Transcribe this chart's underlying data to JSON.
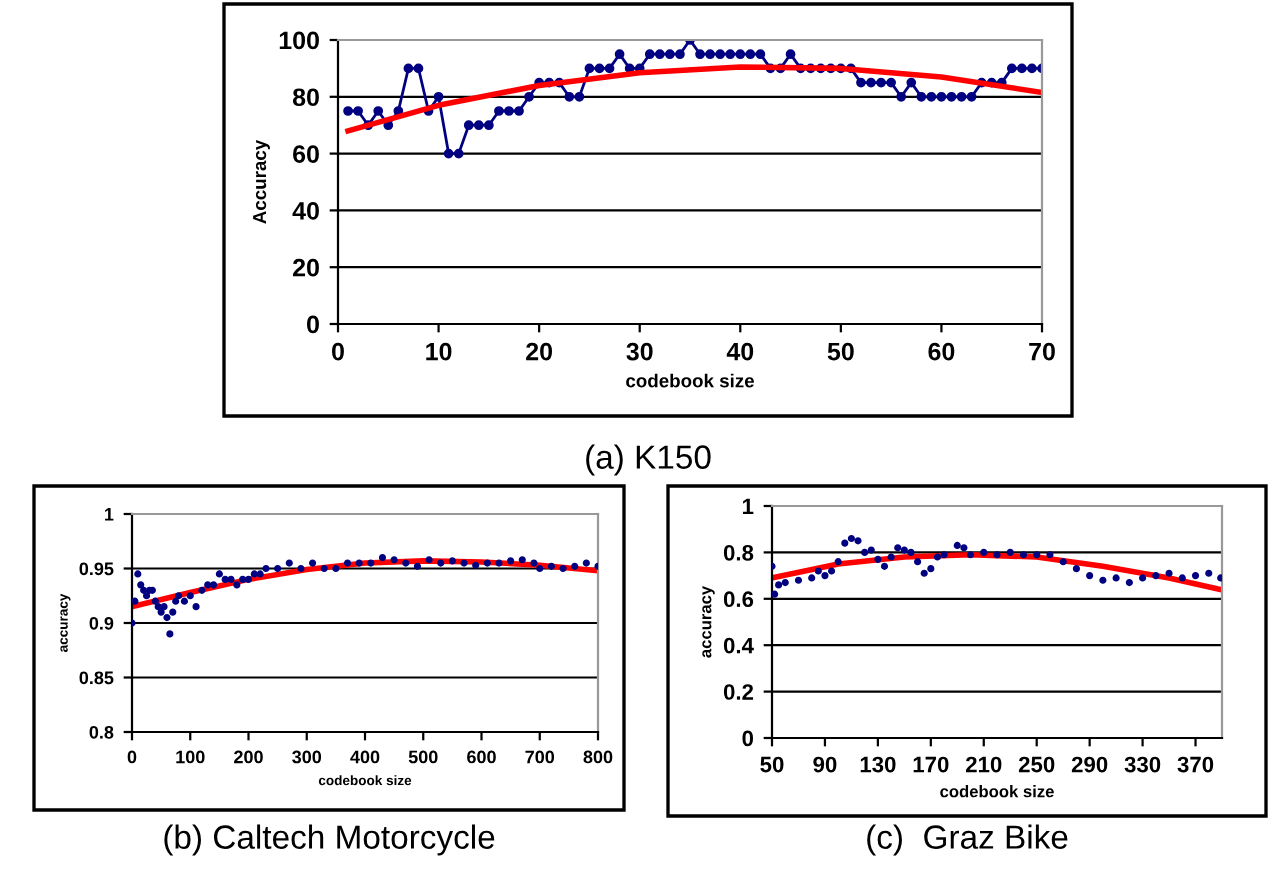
{
  "chart_data": [
    {
      "type": "line",
      "title": "(a) K150",
      "xlabel": "codebook size",
      "ylabel": "Accuracy",
      "xlim": [
        0,
        70
      ],
      "xticks": [
        0,
        10,
        20,
        30,
        40,
        50,
        60,
        70
      ],
      "ylim": [
        0,
        100
      ],
      "yticks": [
        0,
        20,
        40,
        60,
        80,
        100
      ],
      "grid": "y",
      "legend": false,
      "series": [
        {
          "marker": "circle",
          "color": "#000080",
          "x": [
            1,
            2,
            3,
            4,
            5,
            6,
            7,
            8,
            9,
            10,
            11,
            12,
            13,
            14,
            15,
            16,
            17,
            18,
            19,
            20,
            21,
            22,
            23,
            24,
            25,
            26,
            27,
            28,
            29,
            30,
            31,
            32,
            33,
            34,
            35,
            36,
            37,
            38,
            39,
            40,
            41,
            42,
            43,
            44,
            45,
            46,
            47,
            48,
            49,
            50,
            51,
            52,
            53,
            54,
            55,
            56,
            57,
            58,
            59,
            60,
            61,
            62,
            63,
            64,
            65,
            66,
            67,
            68,
            69,
            70
          ],
          "values": [
            75,
            75,
            70,
            75,
            70,
            75,
            90,
            90,
            75,
            80,
            60,
            60,
            70,
            70,
            70,
            75,
            75,
            75,
            80,
            85,
            85,
            85,
            80,
            80,
            90,
            90,
            90,
            95,
            90,
            90,
            95,
            95,
            95,
            95,
            100,
            95,
            95,
            95,
            95,
            95,
            95,
            95,
            90,
            90,
            95,
            90,
            90,
            90,
            90,
            90,
            90,
            85,
            85,
            85,
            85,
            80,
            85,
            80,
            80,
            80,
            80,
            80,
            80,
            85,
            85,
            85,
            90,
            90,
            90,
            90
          ]
        },
        {
          "type": "line",
          "marker": "none",
          "color": "#ff0000",
          "x": [
            1,
            10,
            20,
            30,
            40,
            50,
            60,
            70
          ],
          "values": [
            68,
            77,
            84,
            88.5,
            90.5,
            90,
            87,
            81.5
          ]
        }
      ]
    },
    {
      "type": "scatter",
      "title": "(b) Caltech Motorcycle",
      "xlabel": "codebook size",
      "ylabel": "accuracy",
      "xlim": [
        0,
        800
      ],
      "xticks": [
        0,
        100,
        200,
        300,
        400,
        500,
        600,
        700,
        800
      ],
      "ylim": [
        0.8,
        1
      ],
      "yticks": [
        0.8,
        0.85,
        0.9,
        0.95,
        1
      ],
      "grid": "y",
      "legend": false,
      "series": [
        {
          "marker": "circle",
          "color": "#000080",
          "x": [
            0,
            5,
            10,
            15,
            20,
            25,
            30,
            35,
            40,
            45,
            50,
            55,
            60,
            65,
            70,
            75,
            80,
            90,
            100,
            110,
            120,
            130,
            140,
            150,
            160,
            170,
            180,
            190,
            200,
            210,
            220,
            230,
            250,
            270,
            290,
            310,
            330,
            350,
            370,
            390,
            410,
            430,
            450,
            470,
            490,
            510,
            530,
            550,
            570,
            590,
            610,
            630,
            650,
            670,
            690,
            700,
            720,
            740,
            760,
            780,
            800
          ],
          "values": [
            0.9,
            0.92,
            0.945,
            0.935,
            0.93,
            0.925,
            0.93,
            0.93,
            0.92,
            0.915,
            0.91,
            0.915,
            0.905,
            0.89,
            0.91,
            0.92,
            0.925,
            0.92,
            0.925,
            0.915,
            0.93,
            0.935,
            0.935,
            0.945,
            0.94,
            0.94,
            0.935,
            0.94,
            0.94,
            0.945,
            0.945,
            0.95,
            0.95,
            0.955,
            0.95,
            0.955,
            0.95,
            0.95,
            0.955,
            0.955,
            0.955,
            0.96,
            0.958,
            0.955,
            0.952,
            0.958,
            0.955,
            0.957,
            0.955,
            0.953,
            0.955,
            0.955,
            0.957,
            0.958,
            0.955,
            0.95,
            0.952,
            0.95,
            0.952,
            0.955,
            0.952
          ]
        },
        {
          "type": "line",
          "marker": "none",
          "color": "#ff0000",
          "x": [
            0,
            100,
            200,
            300,
            400,
            500,
            600,
            700,
            800
          ],
          "values": [
            0.915,
            0.928,
            0.94,
            0.949,
            0.955,
            0.957,
            0.956,
            0.953,
            0.948
          ]
        }
      ]
    },
    {
      "type": "scatter",
      "title": "(c)  Graz Bike",
      "xlabel": "codebook size",
      "ylabel": "accuracy",
      "xlim": [
        50,
        390
      ],
      "xticks": [
        50,
        90,
        130,
        170,
        210,
        250,
        290,
        330,
        370
      ],
      "ylim": [
        0,
        1
      ],
      "yticks": [
        0,
        0.2,
        0.4,
        0.6,
        0.8,
        1
      ],
      "grid": "y",
      "legend": false,
      "series": [
        {
          "marker": "circle",
          "color": "#000080",
          "x": [
            50,
            52,
            55,
            60,
            70,
            80,
            85,
            90,
            95,
            100,
            105,
            110,
            115,
            120,
            125,
            130,
            135,
            140,
            145,
            150,
            155,
            160,
            165,
            170,
            175,
            180,
            190,
            195,
            200,
            210,
            220,
            230,
            240,
            250,
            260,
            270,
            280,
            290,
            300,
            310,
            320,
            330,
            340,
            350,
            360,
            370,
            380,
            389
          ],
          "values": [
            0.74,
            0.62,
            0.66,
            0.67,
            0.68,
            0.69,
            0.72,
            0.7,
            0.72,
            0.76,
            0.84,
            0.86,
            0.85,
            0.8,
            0.81,
            0.77,
            0.74,
            0.78,
            0.82,
            0.81,
            0.8,
            0.76,
            0.71,
            0.73,
            0.78,
            0.79,
            0.83,
            0.82,
            0.79,
            0.8,
            0.79,
            0.8,
            0.79,
            0.79,
            0.79,
            0.76,
            0.73,
            0.7,
            0.68,
            0.69,
            0.67,
            0.69,
            0.7,
            0.71,
            0.69,
            0.7,
            0.71,
            0.69
          ]
        },
        {
          "type": "line",
          "marker": "none",
          "color": "#ff0000",
          "x": [
            50,
            100,
            150,
            200,
            250,
            300,
            350,
            389
          ],
          "values": [
            0.69,
            0.75,
            0.78,
            0.79,
            0.78,
            0.74,
            0.69,
            0.64
          ]
        }
      ]
    }
  ]
}
